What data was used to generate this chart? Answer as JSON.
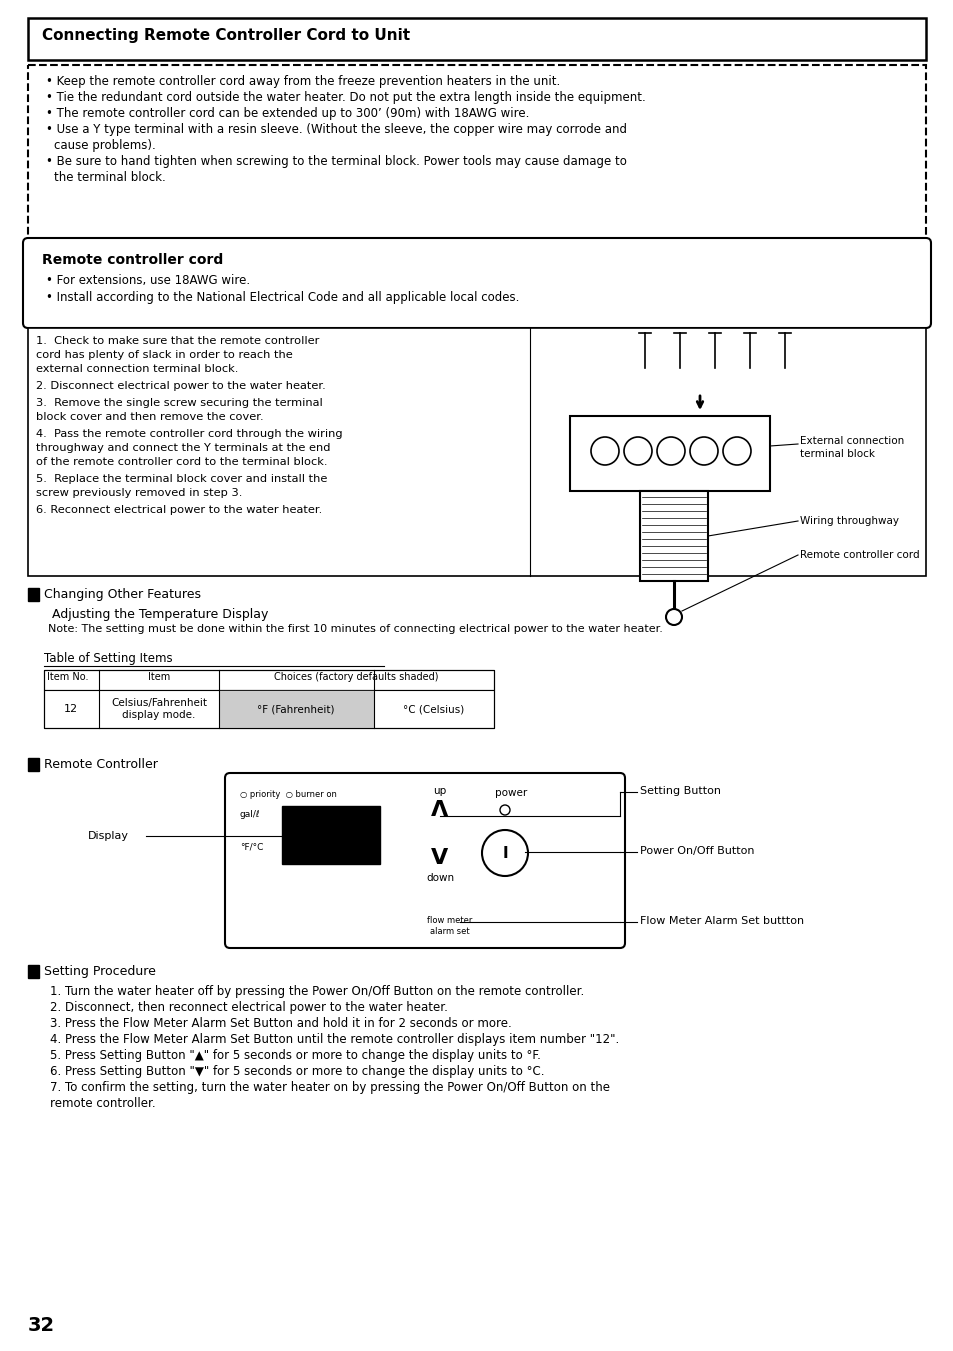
{
  "page_bg": "#ffffff",
  "title_text": "Connecting Remote Controller Cord to Unit",
  "warning_bullets": [
    "Keep the remote controller cord away from the freeze prevention heaters in the unit.",
    "Tie the redundant cord outside the water heater. Do not put the extra length inside the equipment.",
    "The remote controller cord can be extended up to 300’ (90m) with 18AWG wire.",
    "Use a Y type terminal with a resin sleeve. (Without the sleeve, the copper wire may corrode and\n   cause problems).",
    "Be sure to hand tighten when screwing to the terminal block. Power tools may cause damage to\n   the terminal block."
  ],
  "rc_cord_box_title": "Remote controller cord",
  "rc_cord_bullets": [
    "For extensions, use 18AWG wire.",
    "Install according to the National Electrical Code and all applicable local codes."
  ],
  "steps": [
    "1.  Check to make sure that the remote controller\n    cord has plenty of slack in order to reach the\n    external connection terminal block.",
    "2. Disconnect electrical power to the water heater.",
    "3.  Remove the single screw securing the terminal\n    block cover and then remove the cover.",
    "4.  Pass the remote controller cord through the wiring\n    throughway and connect the Y terminals at the end\n    of the remote controller cord to the terminal block.",
    "5.  Replace the terminal block cover and install the\n    screw previously removed in step 3.",
    "6. Reconnect electrical power to the water heater."
  ],
  "section2_title": "Changing Other Features",
  "sub_title": "Adjusting the Temperature Display",
  "note": "Note: The setting must be done within the first 10 minutes of connecting electrical power to the water heater.",
  "table_title": "Table of Setting Items",
  "table_headers": [
    "Item No.",
    "Item",
    "Choices (factory defaults shaded)"
  ],
  "table_row_num": "12",
  "table_row_item": "Celsius/Fahrenheit\ndisplay mode.",
  "table_row_choice1": "°F (Fahrenheit)",
  "table_row_choice2": "°C (Celsius)",
  "section3_title": "Remote Controller",
  "setting_button_label": "Setting Button",
  "display_label": "Display",
  "power_onoff_label": "Power On/Off Button",
  "flow_meter_label": "Flow Meter Alarm Set buttton",
  "section4_title": "Setting Procedure",
  "setting_steps": [
    "1. Turn the water heater off by pressing the Power On/Off Button on the remote controller.",
    "2. Disconnect, then reconnect electrical power to the water heater.",
    "3. Press the Flow Meter Alarm Set Button and hold it in for 2 seconds or more.",
    "4. Press the Flow Meter Alarm Set Button until the remote controller displays item number \"12\".",
    "5. Press Setting Button \"▲\" for 5 seconds or more to change the display units to °F.",
    "6. Press Setting Button \"▼\" for 5 seconds or more to change the display units to °C.",
    "7. To confirm the setting, turn the water heater on by pressing the Power On/Off Button on the\n   remote controller."
  ],
  "page_number": "32"
}
